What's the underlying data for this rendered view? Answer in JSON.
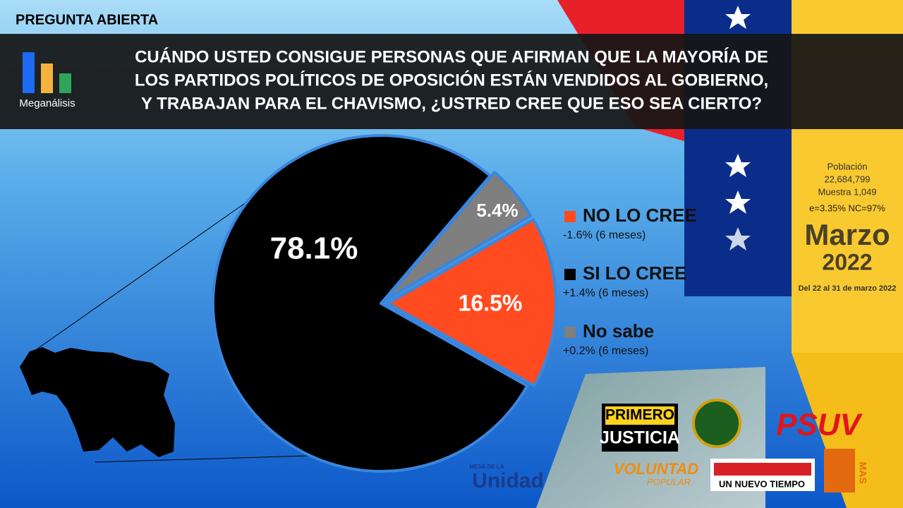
{
  "header": {
    "tag": "PREGUNTA  ABIERTA",
    "brand": "Meganálisis",
    "question": [
      "CUÁNDO USTED CONSIGUE PERSONAS QUE AFIRMAN QUE LA MAYORÍA DE",
      "LOS PARTIDOS POLÍTICOS DE OPOSICIÓN ESTÁN VENDIDOS AL GOBIERNO,",
      "Y TRABAJAN PARA EL CHAVISMO, ¿USTRED CREE QUE ESO SEA CIERTO?"
    ]
  },
  "sidebar": {
    "lines": [
      "Población",
      "22,684,799",
      "Muestra 1,049",
      "e=3.35%  NC=97%"
    ],
    "month": "Marzo",
    "year": "2022",
    "dates": "Del 22 al 31 de marzo 2022"
  },
  "logos": {
    "pj_top": "PRIMERO",
    "pj_bottom": "JUSTICIA",
    "psuv": "PSUV",
    "vp_top": "VOLUNTAD",
    "vp_bottom": "POPULAR",
    "mud_top": "MESA DE LA",
    "mud": "Unidad",
    "unt": "UN NUEVO TIEMPO",
    "mas": "MAS"
  },
  "chart_data": {
    "type": "pie",
    "categories": [
      "NO LO CREE",
      "SI LO CREE",
      "No sabe"
    ],
    "values": [
      16.5,
      78.1,
      5.4
    ],
    "value_labels": [
      "16.5%",
      "78.1%",
      "5.4%"
    ],
    "colors": [
      "#ff4b1f",
      "#000000",
      "#7f7f7f"
    ],
    "legend_notes": [
      "-1.6% (6 meses)",
      "+1.4% (6 meses)",
      "+0.2% (6 meses)"
    ]
  }
}
